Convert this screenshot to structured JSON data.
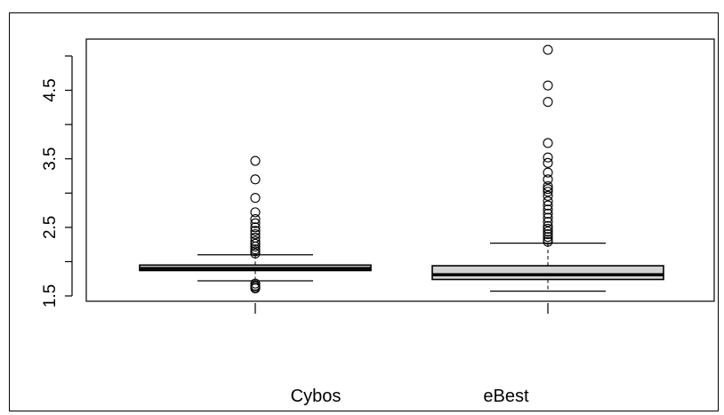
{
  "chart_data": {
    "type": "box",
    "ylim": [
      1.45,
      5.25
    ],
    "yticks": [
      1.5,
      2.0,
      2.5,
      3.0,
      3.5,
      4.0,
      4.5,
      5.0
    ],
    "ytick_labels": [
      "1.5",
      "",
      "2.5",
      "",
      "3.5",
      "",
      "4.5",
      ""
    ],
    "categories": [
      "Cybos",
      "eBest"
    ],
    "box_fill": "#d3d3d3",
    "boxes": [
      {
        "name": "Cybos",
        "whisker_low": 1.72,
        "q1": 1.87,
        "median": 1.9,
        "q3": 1.95,
        "whisker_high": 2.1,
        "outliers": [
          1.61,
          1.63,
          1.65,
          1.68,
          2.12,
          2.15,
          2.18,
          2.22,
          2.26,
          2.3,
          2.35,
          2.4,
          2.45,
          2.5,
          2.56,
          2.62,
          2.72,
          2.93,
          3.2,
          3.47
        ]
      },
      {
        "name": "eBest",
        "whisker_low": 1.57,
        "q1": 1.74,
        "median": 1.81,
        "q3": 1.94,
        "whisker_high": 2.27,
        "outliers": [
          2.29,
          2.32,
          2.36,
          2.4,
          2.44,
          2.48,
          2.52,
          2.58,
          2.64,
          2.7,
          2.76,
          2.82,
          2.88,
          2.96,
          3.02,
          3.06,
          3.1,
          3.2,
          3.3,
          3.44,
          3.52,
          3.73,
          4.33,
          4.57,
          5.09
        ]
      }
    ]
  }
}
